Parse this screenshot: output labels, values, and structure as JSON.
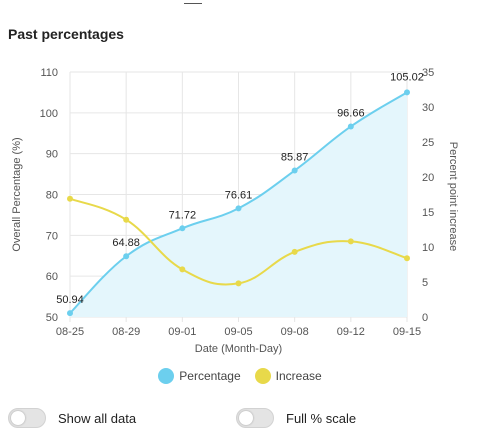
{
  "page": {
    "title": "Past percentages",
    "toggles": [
      {
        "label": "Show all data",
        "on": false
      },
      {
        "label": "Full % scale",
        "on": false
      }
    ]
  },
  "colors": {
    "percentage_line": "#6ccfee",
    "percentage_fill": "#e4f6fc",
    "increase_line": "#e8d94a",
    "grid": "#e6e6e6",
    "axis_text": "#555555"
  },
  "chart_data": {
    "type": "line",
    "categories": [
      "08-25",
      "08-29",
      "09-01",
      "09-05",
      "09-08",
      "09-12",
      "09-15"
    ],
    "xlabel": "Date (Month-Day)",
    "ylabel": "Overall Percentage (%)",
    "y2label": "Percent point increase",
    "ylim": [
      50,
      110
    ],
    "y2lim": [
      0,
      35
    ],
    "yticks": [
      50,
      60,
      70,
      80,
      90,
      100,
      110
    ],
    "y2ticks": [
      0,
      5,
      10,
      15,
      20,
      25,
      30,
      35
    ],
    "grid": true,
    "legend_position": "bottom",
    "series": [
      {
        "name": "Percentage",
        "axis": "left",
        "values": [
          50.94,
          64.88,
          71.72,
          76.61,
          85.87,
          96.66,
          105.02
        ],
        "labels": [
          "50.94",
          "64.88",
          "71.72",
          "76.61",
          "85.87",
          "96.66",
          "105.02"
        ],
        "filled": true
      },
      {
        "name": "Increase",
        "axis": "right",
        "values": [
          16.9,
          13.9,
          6.8,
          4.8,
          9.3,
          10.8,
          8.4
        ]
      }
    ]
  }
}
